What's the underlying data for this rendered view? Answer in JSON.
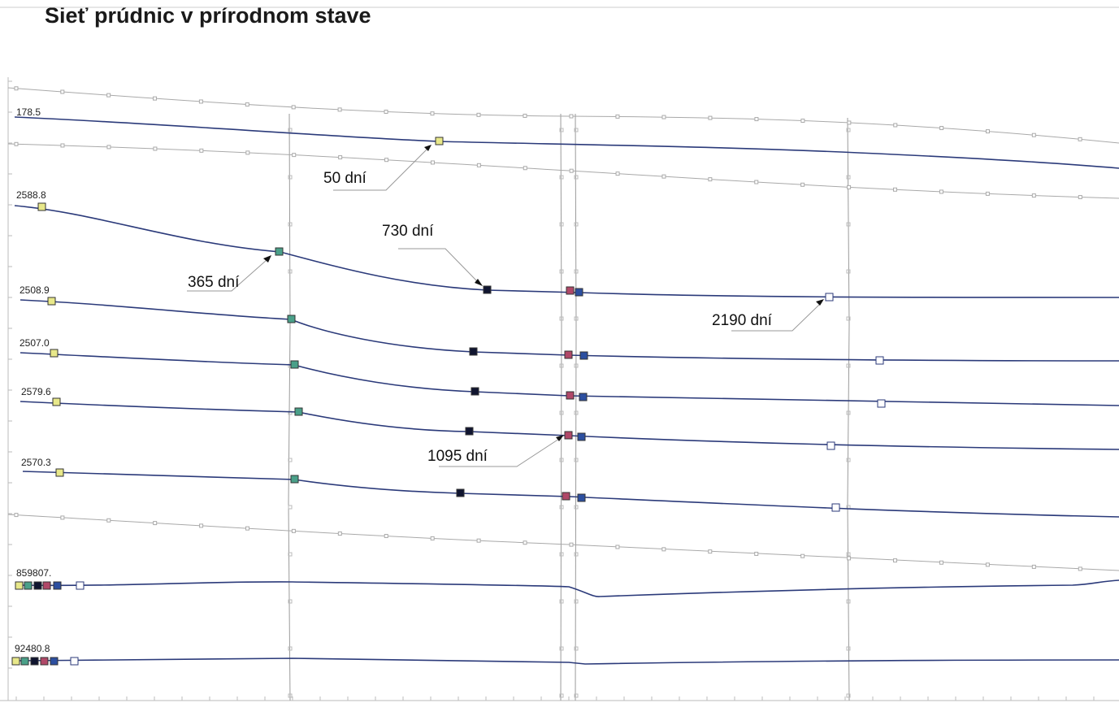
{
  "title": "Sieť prúdnic v prírodnom stave",
  "stream_labels": [
    "178.5",
    "2588.8",
    "2508.9",
    "2507.0",
    "2579.6",
    "2570.3",
    "859807.",
    "92480.8"
  ],
  "time_labels": {
    "t50": "50 dní",
    "t365": "365 dní",
    "t730": "730 dní",
    "t1095": "1095 dní",
    "t2190": "2190 dní"
  },
  "colors": {
    "streamline": "#2b3a7a",
    "boundary": "#b8b8b8",
    "marker_50": "#e8e88a",
    "marker_365": "#4aa089",
    "marker_730": "#101530",
    "marker_1095": "#b04868",
    "marker_1095b": "#2c4fa0",
    "marker_2190": "#ffffff"
  }
}
